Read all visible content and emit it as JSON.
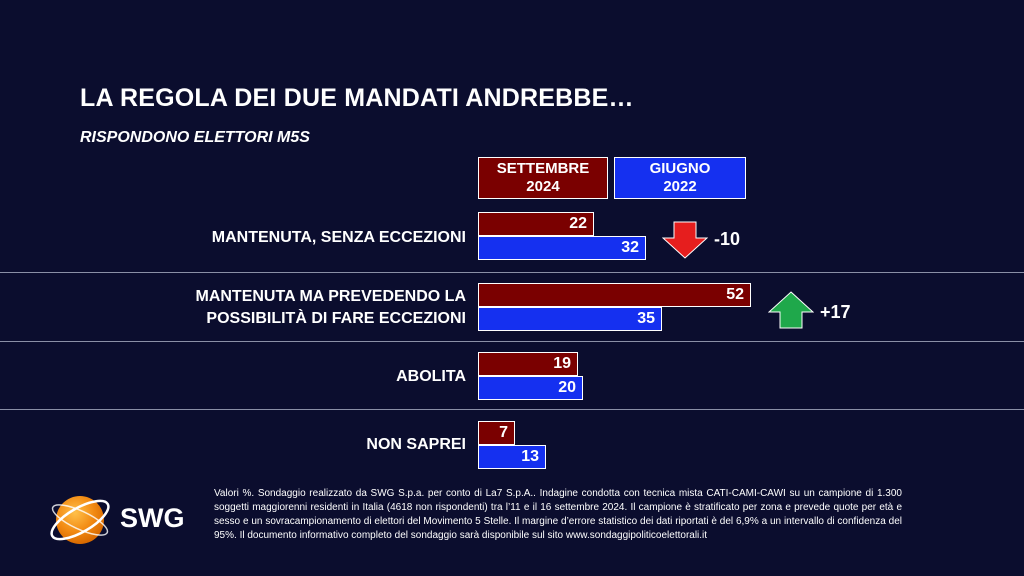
{
  "header": {
    "title": "LA REGOLA DEI DUE MANDATI ANDREBBE…",
    "subtitle": "RISPONDONO ELETTORI M5S"
  },
  "chart_data": {
    "type": "bar",
    "orientation": "horizontal",
    "categories": [
      "MANTENUTA, SENZA ECCEZIONI",
      "MANTENUTA MA PREVEDENDO LA\nPOSSIBILITÀ DI FARE ECCEZIONI",
      "ABOLITA",
      "NON SAPREI"
    ],
    "series": [
      {
        "name": "SETTEMBRE\n2024",
        "color": "#7a0000",
        "values": [
          22,
          52,
          19,
          7
        ]
      },
      {
        "name": "GIUGNO\n2022",
        "color": "#1530f0",
        "values": [
          32,
          35,
          20,
          13
        ]
      }
    ],
    "deltas": [
      {
        "text": "-10",
        "direction": "down",
        "color": "#e61e1e"
      },
      {
        "text": "+17",
        "direction": "up",
        "color": "#1fa84b"
      }
    ],
    "unit": "%",
    "grid": false
  },
  "brand": {
    "logo_name": "SWG",
    "logo_text": "SWG"
  },
  "footnote": "Valori %. Sondaggio realizzato da SWG S.p.a. per conto di La7 S.p.A.. Indagine condotta con tecnica mista CATI-CAMI-CAWI su un campione di 1.300 soggetti maggiorenni residenti in Italia (4618 non rispondenti) tra l’11 e il 16 settembre 2024. Il campione è stratificato per zona e prevede quote per età e sesso e un sovracampionamento di elettori del Movimento 5 Stelle. Il margine d’errore statistico dei dati riportati è del 6,9% a un intervallo di confidenza del 95%. Il documento informativo completo del sondaggio sarà disponibile sul sito www.sondaggipoliticoelettorali.it"
}
